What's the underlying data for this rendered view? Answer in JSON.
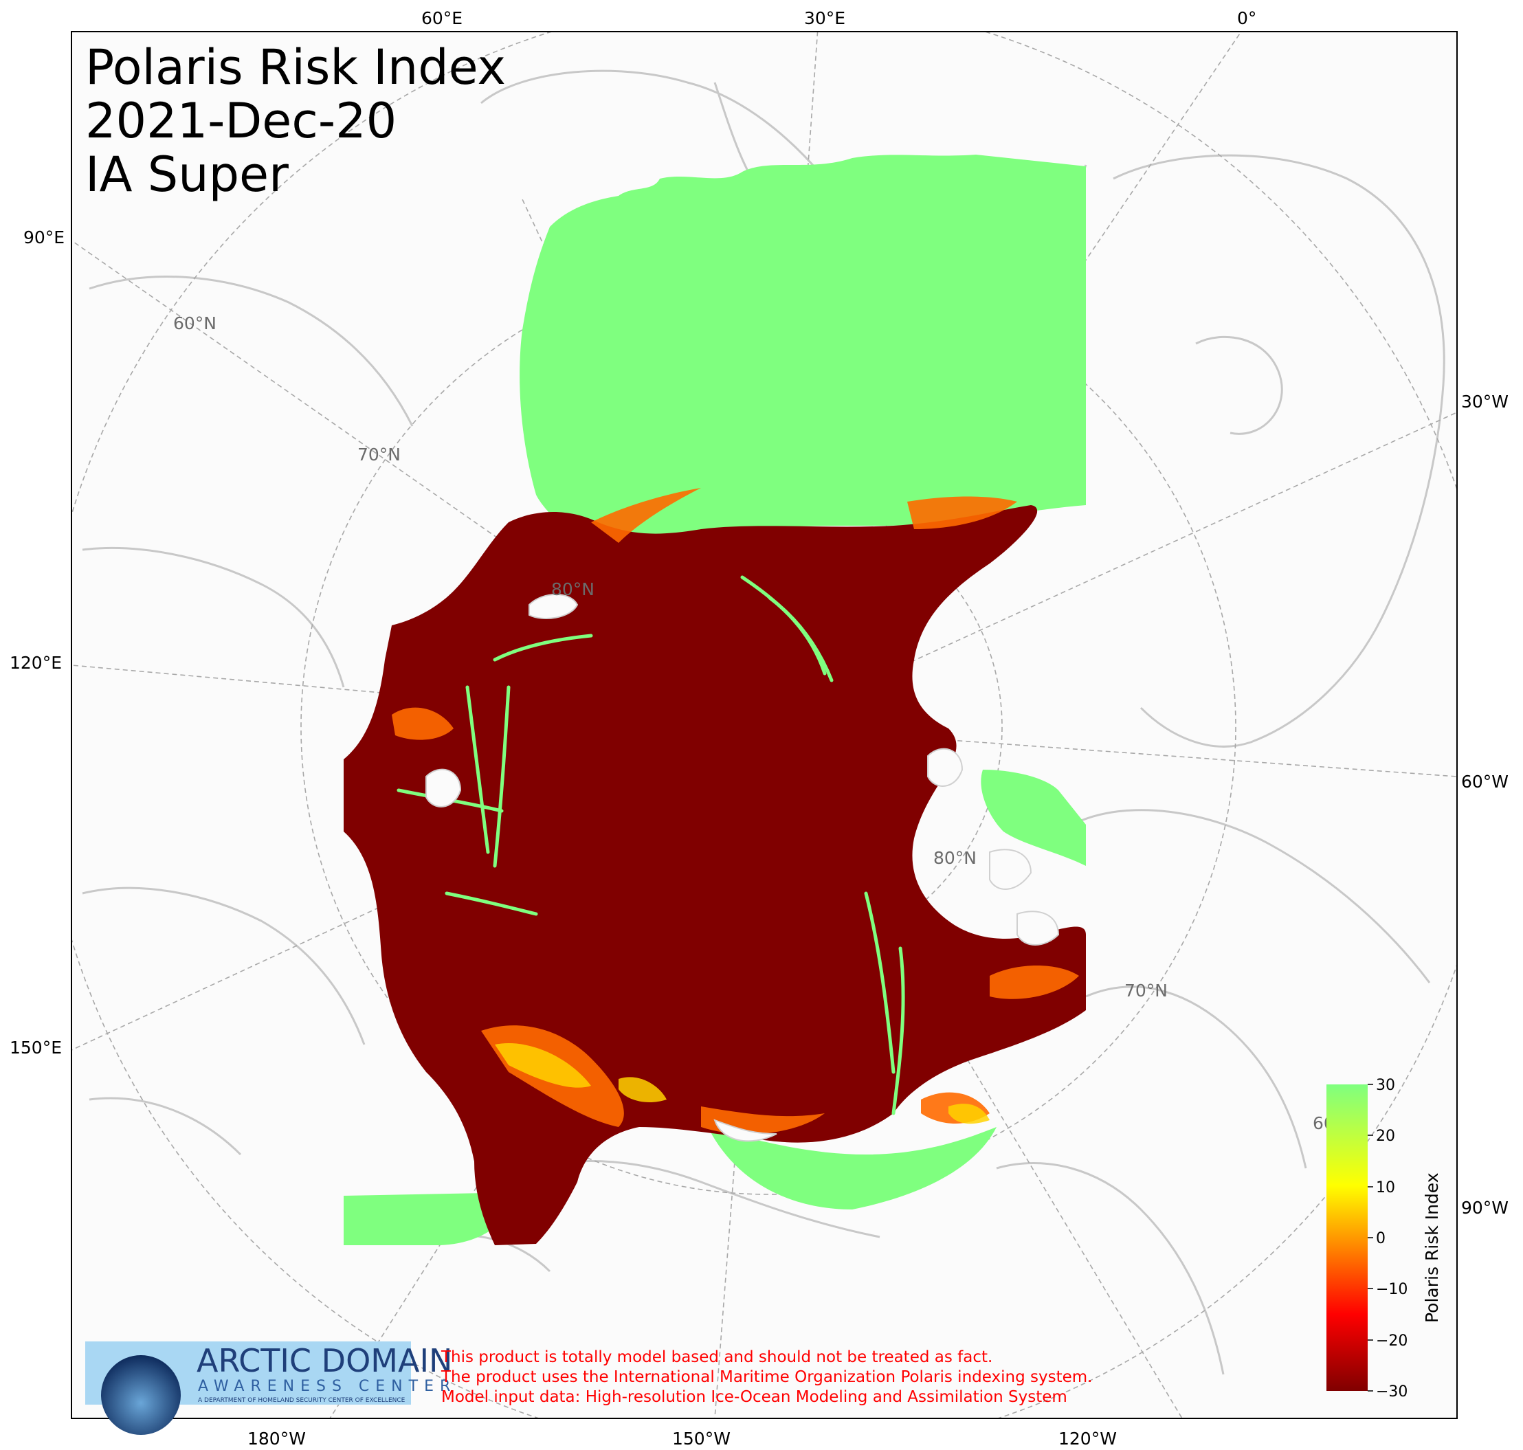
{
  "title": {
    "line1": "Polaris Risk Index",
    "line2": "2021-Dec-20",
    "line3": "IA Super"
  },
  "map_labels": {
    "top_ticks": [
      "60°E",
      "30°E",
      "0°"
    ],
    "left_ticks": [
      "90°E",
      "120°E",
      "150°E"
    ],
    "right_ticks": [
      "30°W",
      "60°W",
      "90°W"
    ],
    "bottom_ticks": [
      "180°W",
      "150°W",
      "120°W"
    ],
    "lat_labels": [
      "60°N",
      "70°N",
      "80°N",
      "80°N",
      "70°N",
      "60°N"
    ]
  },
  "legend": {
    "label": "Polaris Risk Index",
    "ticks": [
      "30",
      "20",
      "10",
      "0",
      "−10",
      "−20",
      "−30"
    ],
    "colors": [
      "#7fff7f",
      "#ffff00",
      "#ff9900",
      "#ff0000",
      "#800000"
    ]
  },
  "colors": {
    "high_risk": "#800000",
    "medium_risk": "#ff6a00",
    "low_risk": "#7fff7f",
    "land_border": "#c8c8c8",
    "graticule": "#a8a8a8",
    "disclaimer": "#ff0000"
  },
  "logo": {
    "main": "ARCTIC DOMAIN",
    "sub": "AWARENESS CENTER",
    "foot": "A DEPARTMENT OF HOMELAND SECURITY CENTER OF EXCELLENCE"
  },
  "disclaimer": {
    "line1": "This product is totally model based and should not be treated as fact.",
    "line2": "The product uses the International Maritime Organization Polaris indexing system.",
    "line3": "Model input data: High-resolution Ice-Ocean Modeling and Assimilation System"
  }
}
